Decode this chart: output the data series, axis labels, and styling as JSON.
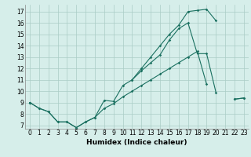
{
  "xlabel": "Humidex (Indice chaleur)",
  "x_values": [
    0,
    1,
    2,
    3,
    4,
    5,
    6,
    7,
    8,
    9,
    10,
    11,
    12,
    13,
    14,
    15,
    16,
    17,
    18,
    19,
    20,
    21,
    22,
    23
  ],
  "line1_y": [
    9.0,
    null,
    null,
    null,
    null,
    null,
    null,
    null,
    null,
    null,
    null,
    11.0,
    12.0,
    13.0,
    14.0,
    15.0,
    15.8,
    17.0,
    17.1,
    17.2,
    16.2,
    null,
    null,
    null
  ],
  "line2_y": [
    9.0,
    8.5,
    8.2,
    7.3,
    7.3,
    6.8,
    7.3,
    7.7,
    9.2,
    9.1,
    10.5,
    11.0,
    11.8,
    12.5,
    13.2,
    14.5,
    15.5,
    16.0,
    13.3,
    13.3,
    9.9,
    null,
    9.3,
    9.4
  ],
  "line3_y": [
    9.0,
    8.5,
    8.2,
    7.3,
    7.3,
    6.8,
    7.3,
    7.7,
    8.5,
    8.9,
    9.5,
    10.0,
    10.5,
    11.0,
    11.5,
    12.0,
    12.5,
    13.0,
    13.5,
    10.6,
    null,
    null,
    9.3,
    9.4
  ],
  "bg_color": "#d6eeea",
  "line_color": "#1a7060",
  "grid_color": "#aaccc6",
  "ylim": [
    6.7,
    17.6
  ],
  "xlim": [
    -0.5,
    23.5
  ],
  "yticks": [
    7,
    8,
    9,
    10,
    11,
    12,
    13,
    14,
    15,
    16,
    17
  ],
  "xticks": [
    0,
    1,
    2,
    3,
    4,
    5,
    6,
    7,
    8,
    9,
    10,
    11,
    12,
    13,
    14,
    15,
    16,
    17,
    18,
    19,
    20,
    21,
    22,
    23
  ],
  "tick_fontsize": 5.5,
  "xlabel_fontsize": 6.5
}
